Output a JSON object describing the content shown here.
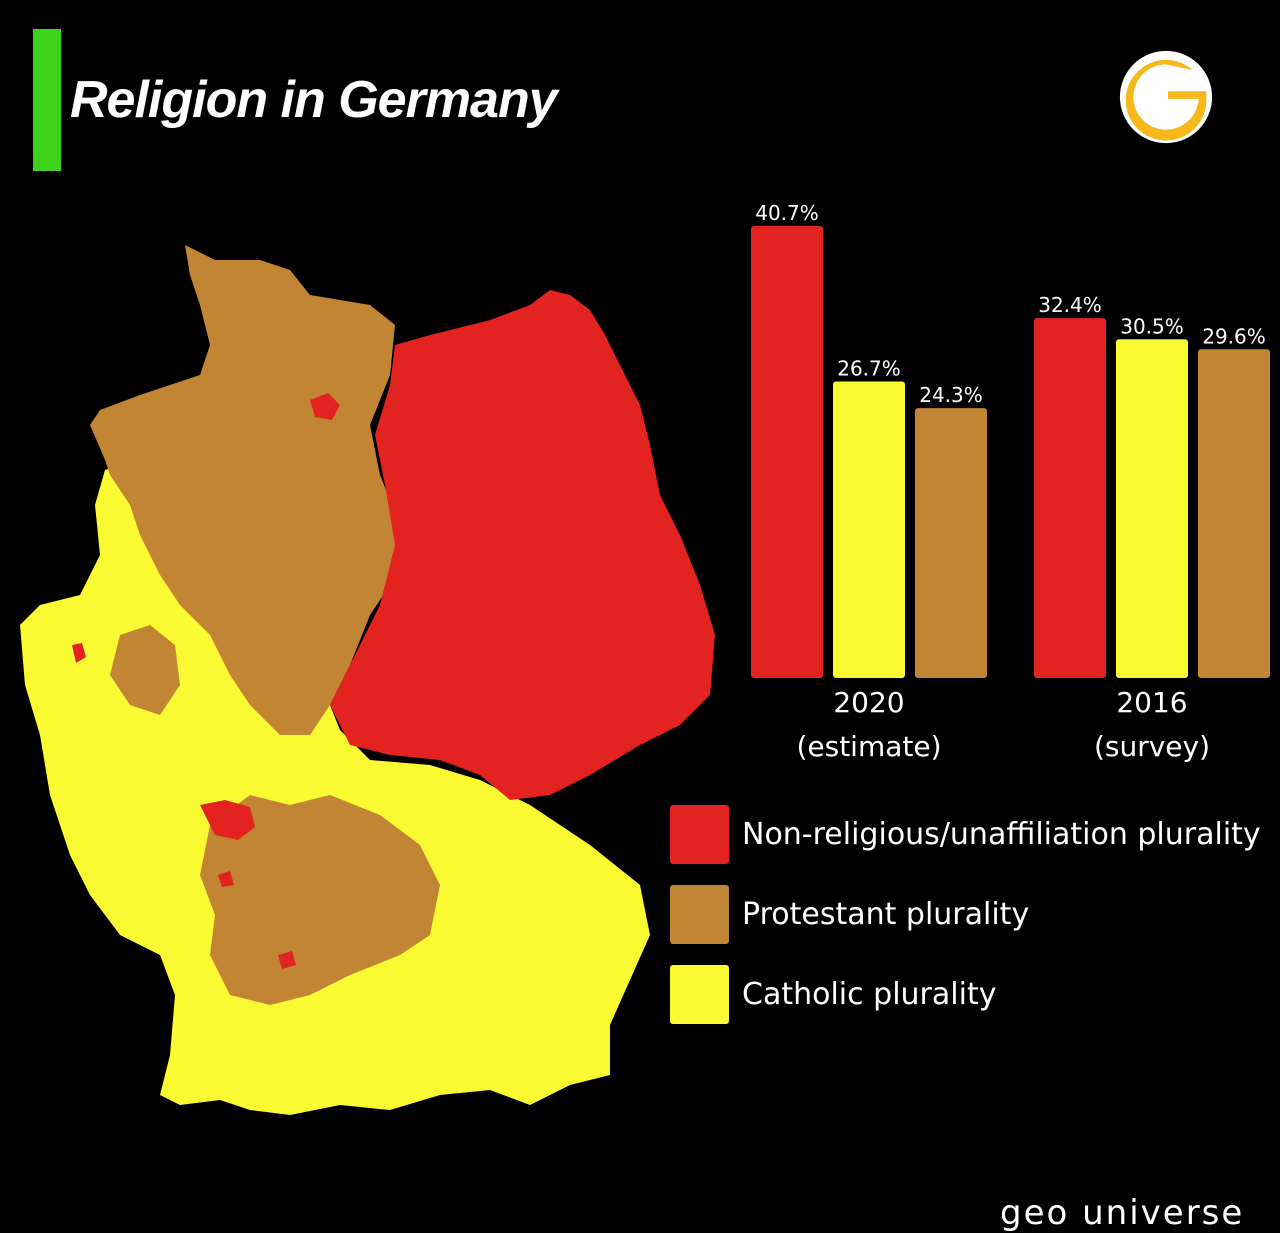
{
  "header": {
    "title": "Religion in Germany",
    "accent_color": "#3fd21a"
  },
  "logo": {
    "icon": "g-logo-icon",
    "color": "#f6b81a"
  },
  "colors": {
    "non_religious": "#e2231f",
    "catholic": "#fafa33",
    "protestant": "#c18534"
  },
  "chart_data": {
    "type": "bar",
    "categories": [
      "2020\n(estimate)",
      "2016\n(survey)"
    ],
    "groups": [
      {
        "label_line1": "2020",
        "label_line2": "(estimate)"
      },
      {
        "label_line1": "2016",
        "label_line2": "(survey)"
      }
    ],
    "series": [
      {
        "name": "Non-religious/unaffiliation plurality",
        "values": [
          40.7,
          32.4
        ],
        "labels": [
          "40.7%",
          "32.4%"
        ]
      },
      {
        "name": "Catholic plurality",
        "values": [
          26.7,
          30.5
        ],
        "labels": [
          "26.7%",
          "30.5%"
        ]
      },
      {
        "name": "Protestant plurality",
        "values": [
          24.3,
          29.6
        ],
        "labels": [
          "24.3%",
          "29.6%"
        ]
      }
    ],
    "ylim": [
      0,
      40.7
    ],
    "grid": false,
    "legend_placement": "bottom-right"
  },
  "legend": [
    {
      "label": "Non-religious/unaffiliation plurality",
      "color": "#e2231f"
    },
    {
      "label": "Protestant plurality",
      "color": "#c18534"
    },
    {
      "label": "Catholic plurality",
      "color": "#fafa33"
    }
  ],
  "footer": {
    "text": "geo universe"
  }
}
